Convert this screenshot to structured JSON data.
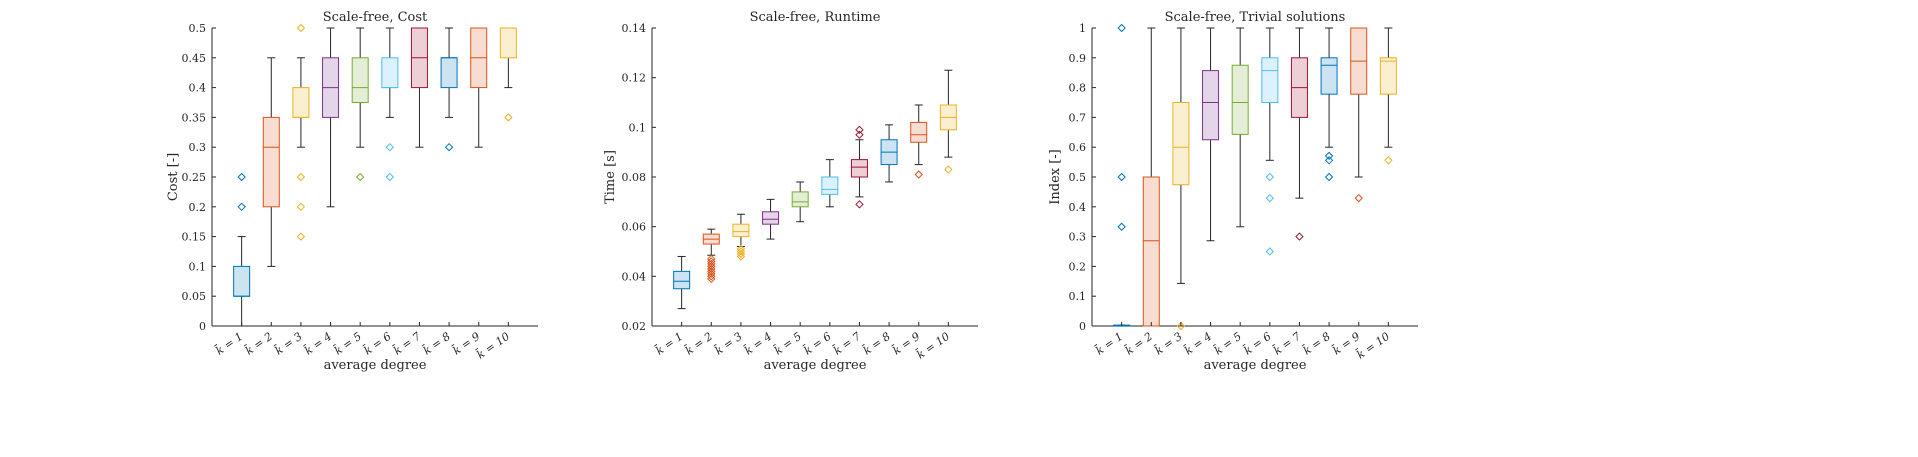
{
  "chart_data": [
    {
      "type": "box",
      "title": "Scale-free, Cost",
      "xlabel": "average degree",
      "ylabel": "Cost [-]",
      "ylim": [
        0,
        0.5
      ],
      "yticks": [
        "0",
        "0.05",
        "0.1",
        "0.15",
        "0.2",
        "0.25",
        "0.3",
        "0.35",
        "0.4",
        "0.45",
        "0.5"
      ],
      "categories": [
        "k̄ = 1",
        "k̄ = 2",
        "k̄ = 3",
        "k̄ = 4",
        "k̄ = 5",
        "k̄ = 6",
        "k̄ = 7",
        "k̄ = 8",
        "k̄ = 9",
        "k̄ = 10"
      ],
      "boxes": [
        {
          "whislo": 0,
          "q1": 0.05,
          "med": 0.05,
          "q3": 0.1,
          "whishi": 0.15,
          "fliers": [
            0.2,
            0.25
          ]
        },
        {
          "whislo": 0.1,
          "q1": 0.2,
          "med": 0.3,
          "q3": 0.35,
          "whishi": 0.45,
          "fliers": []
        },
        {
          "whislo": 0.3,
          "q1": 0.35,
          "med": 0.35,
          "q3": 0.4,
          "whishi": 0.45,
          "fliers": [
            0.15,
            0.2,
            0.25,
            0.5
          ]
        },
        {
          "whislo": 0.2,
          "q1": 0.35,
          "med": 0.4,
          "q3": 0.45,
          "whishi": 0.5,
          "fliers": []
        },
        {
          "whislo": 0.3,
          "q1": 0.375,
          "med": 0.4,
          "q3": 0.45,
          "whishi": 0.5,
          "fliers": [
            0.25
          ]
        },
        {
          "whislo": 0.35,
          "q1": 0.4,
          "med": 0.4,
          "q3": 0.45,
          "whishi": 0.5,
          "fliers": [
            0.25,
            0.3
          ]
        },
        {
          "whislo": 0.3,
          "q1": 0.4,
          "med": 0.45,
          "q3": 0.5,
          "whishi": 0.5,
          "fliers": []
        },
        {
          "whislo": 0.35,
          "q1": 0.4,
          "med": 0.45,
          "q3": 0.45,
          "whishi": 0.5,
          "fliers": [
            0.3
          ]
        },
        {
          "whislo": 0.3,
          "q1": 0.4,
          "med": 0.45,
          "q3": 0.5,
          "whishi": 0.5,
          "fliers": []
        },
        {
          "whislo": 0.4,
          "q1": 0.45,
          "med": 0.5,
          "q3": 0.5,
          "whishi": 0.5,
          "fliers": [
            0.35
          ]
        }
      ]
    },
    {
      "type": "box",
      "title": "Scale-free, Runtime",
      "xlabel": "average degree",
      "ylabel": "Time [s]",
      "ylim": [
        0.02,
        0.14
      ],
      "yticks": [
        "0.02",
        "0.04",
        "0.06",
        "0.08",
        "0.1",
        "0.12",
        "0.14"
      ],
      "categories": [
        "k̄ = 1",
        "k̄ = 2",
        "k̄ = 3",
        "k̄ = 4",
        "k̄ = 5",
        "k̄ = 6",
        "k̄ = 7",
        "k̄ = 8",
        "k̄ = 9",
        "k̄ = 10"
      ],
      "boxes": [
        {
          "whislo": 0.027,
          "q1": 0.035,
          "med": 0.038,
          "q3": 0.042,
          "whishi": 0.048,
          "fliers": []
        },
        {
          "whislo": 0.0485,
          "q1": 0.053,
          "med": 0.055,
          "q3": 0.057,
          "whishi": 0.059,
          "fliers": [
            0.039,
            0.04,
            0.041,
            0.042,
            0.043,
            0.044,
            0.045,
            0.046,
            0.047
          ]
        },
        {
          "whislo": 0.052,
          "q1": 0.056,
          "med": 0.058,
          "q3": 0.061,
          "whishi": 0.065,
          "fliers": [
            0.048,
            0.049,
            0.05,
            0.051
          ]
        },
        {
          "whislo": 0.055,
          "q1": 0.061,
          "med": 0.063,
          "q3": 0.066,
          "whishi": 0.071,
          "fliers": []
        },
        {
          "whislo": 0.062,
          "q1": 0.068,
          "med": 0.07,
          "q3": 0.074,
          "whishi": 0.078,
          "fliers": []
        },
        {
          "whislo": 0.068,
          "q1": 0.073,
          "med": 0.075,
          "q3": 0.08,
          "whishi": 0.087,
          "fliers": []
        },
        {
          "whislo": 0.072,
          "q1": 0.08,
          "med": 0.084,
          "q3": 0.087,
          "whishi": 0.095,
          "fliers": [
            0.069,
            0.097,
            0.099
          ]
        },
        {
          "whislo": 0.078,
          "q1": 0.085,
          "med": 0.09,
          "q3": 0.095,
          "whishi": 0.101,
          "fliers": []
        },
        {
          "whislo": 0.085,
          "q1": 0.094,
          "med": 0.097,
          "q3": 0.102,
          "whishi": 0.109,
          "fliers": [
            0.081
          ]
        },
        {
          "whislo": 0.088,
          "q1": 0.099,
          "med": 0.104,
          "q3": 0.109,
          "whishi": 0.123,
          "fliers": [
            0.083
          ]
        }
      ]
    },
    {
      "type": "box",
      "title": "Scale-free, Trivial solutions",
      "xlabel": "average degree",
      "ylabel": "Index [-]",
      "ylim": [
        0,
        1
      ],
      "yticks": [
        "0",
        "0.1",
        "0.2",
        "0.3",
        "0.4",
        "0.5",
        "0.6",
        "0.7",
        "0.8",
        "0.9",
        "1"
      ],
      "categories": [
        "k̄ = 1",
        "k̄ = 2",
        "k̄ = 3",
        "k̄ = 4",
        "k̄ = 5",
        "k̄ = 6",
        "k̄ = 7",
        "k̄ = 8",
        "k̄ = 9",
        "k̄ = 10"
      ],
      "boxes": [
        {
          "whislo": 0,
          "q1": 0,
          "med": 0,
          "q3": 0.003,
          "whishi": 0.003,
          "fliers": [
            0.333,
            0.5,
            1.0
          ]
        },
        {
          "whislo": 0,
          "q1": 0,
          "med": 0.286,
          "q3": 0.5,
          "whishi": 1.0,
          "fliers": []
        },
        {
          "whislo": 0.143,
          "q1": 0.474,
          "med": 0.6,
          "q3": 0.75,
          "whishi": 1.0,
          "fliers": [
            0
          ]
        },
        {
          "whislo": 0.286,
          "q1": 0.625,
          "med": 0.75,
          "q3": 0.857,
          "whishi": 1.0,
          "fliers": []
        },
        {
          "whislo": 0.333,
          "q1": 0.643,
          "med": 0.75,
          "q3": 0.875,
          "whishi": 1.0,
          "fliers": []
        },
        {
          "whislo": 0.556,
          "q1": 0.75,
          "med": 0.857,
          "q3": 0.9,
          "whishi": 1.0,
          "fliers": [
            0.25,
            0.429,
            0.5
          ]
        },
        {
          "whislo": 0.429,
          "q1": 0.7,
          "med": 0.8,
          "q3": 0.9,
          "whishi": 1.0,
          "fliers": [
            0.3
          ]
        },
        {
          "whislo": 0.6,
          "q1": 0.778,
          "med": 0.875,
          "q3": 0.9,
          "whishi": 1.0,
          "fliers": [
            0.5,
            0.556,
            0.571
          ]
        },
        {
          "whislo": 0.5,
          "q1": 0.778,
          "med": 0.889,
          "q3": 1.0,
          "whishi": 1.0,
          "fliers": [
            0.429
          ]
        },
        {
          "whislo": 0.6,
          "q1": 0.778,
          "med": 0.889,
          "q3": 0.9,
          "whishi": 1.0,
          "fliers": [
            0.556
          ]
        }
      ]
    }
  ],
  "colors": {
    "edges": [
      "#0072BD",
      "#D95319",
      "#EDB120",
      "#7E2F8E",
      "#77AC30",
      "#4DBEEE",
      "#A2142F",
      "#0072BD",
      "#D95319",
      "#EDB120"
    ],
    "axis": "#262626",
    "whisker": "#262626"
  }
}
